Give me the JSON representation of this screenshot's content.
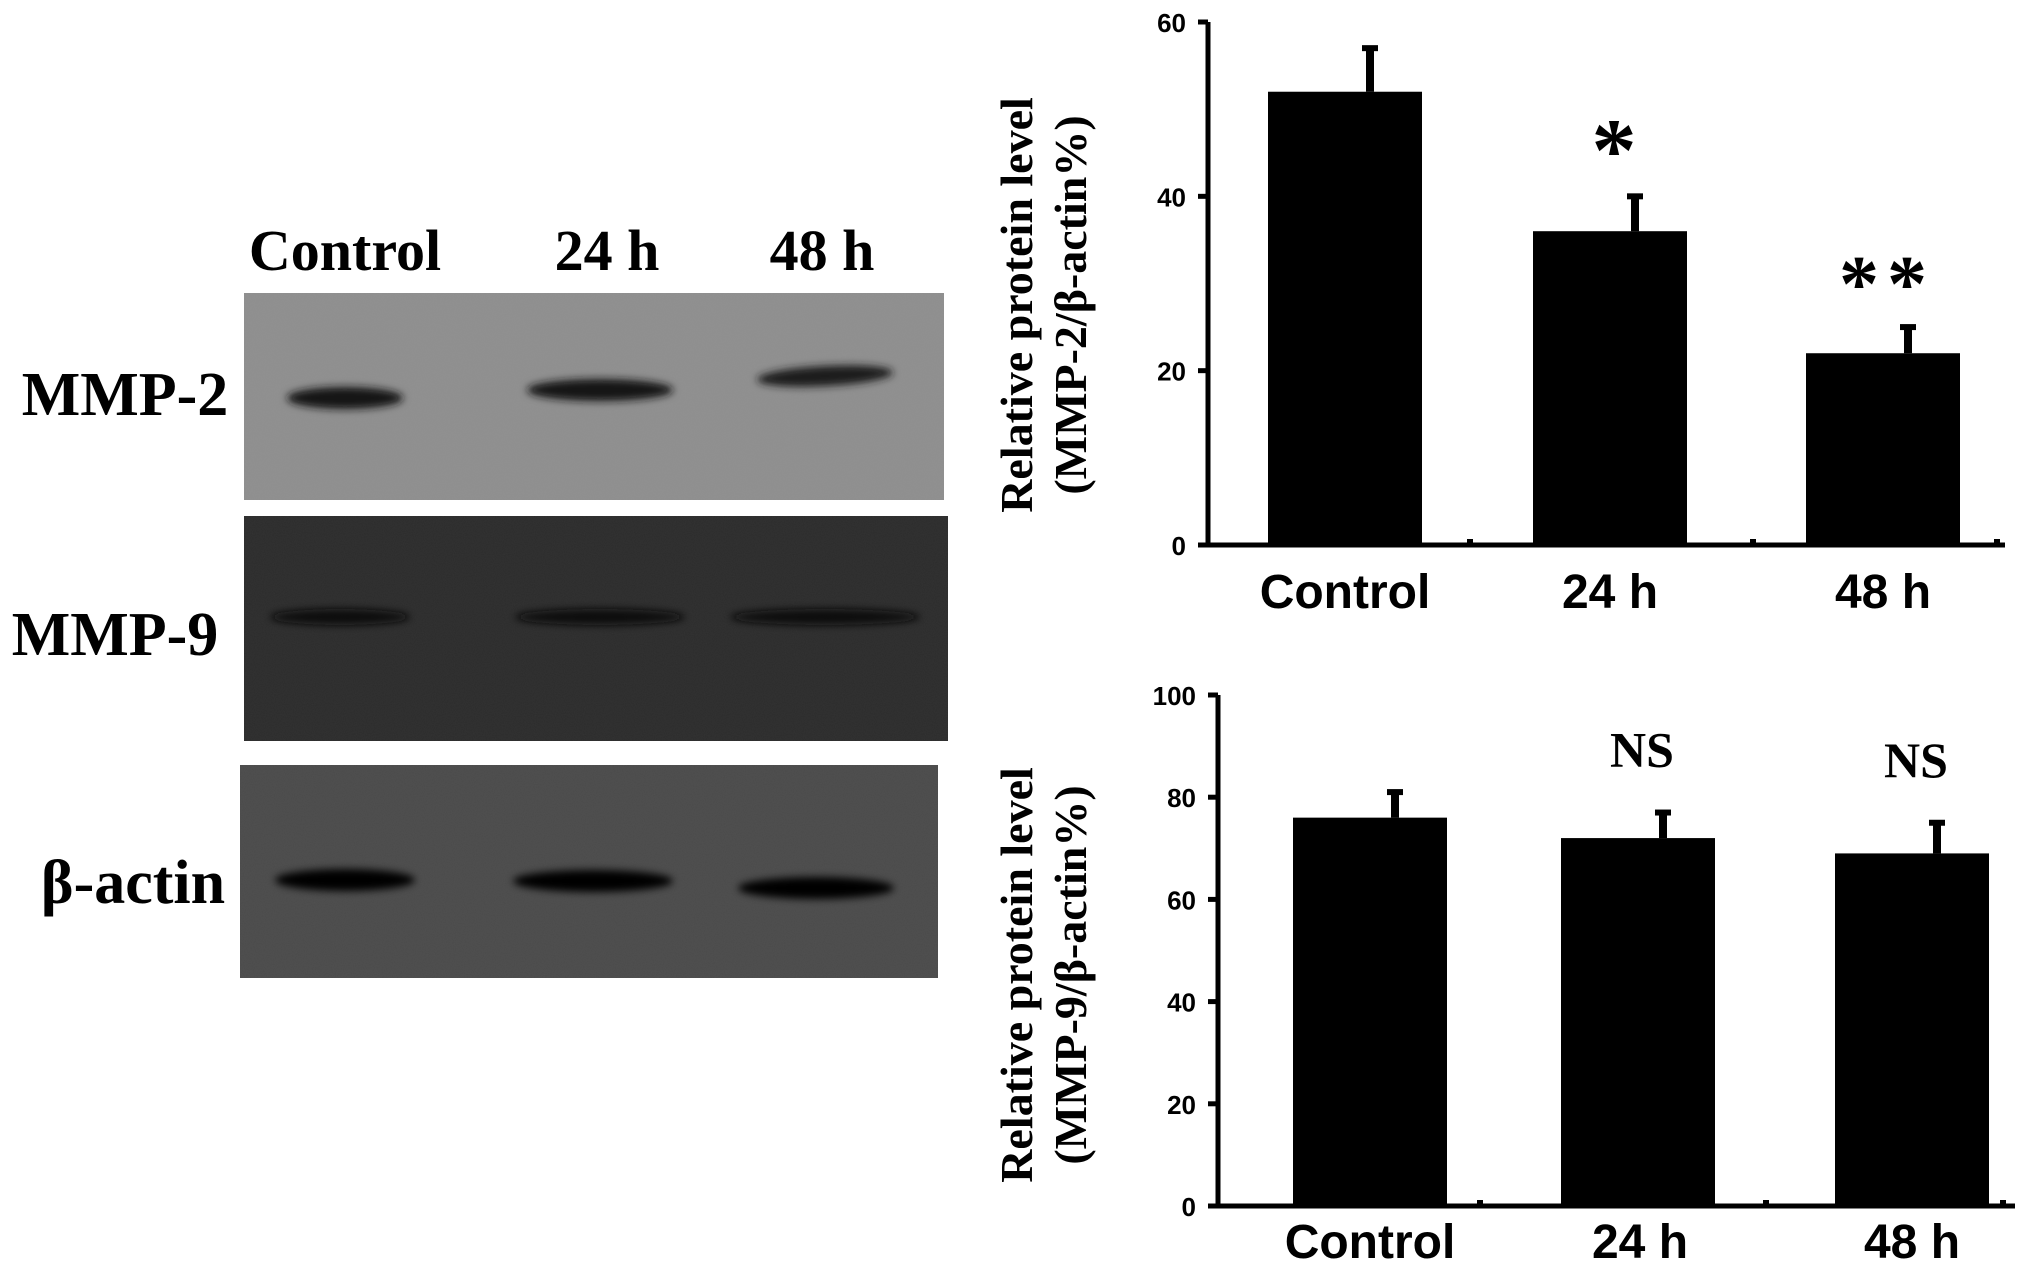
{
  "blot": {
    "lanes": [
      "Control",
      "24 h",
      "48 h"
    ],
    "rows": [
      {
        "label": "MMP-2",
        "band_intensity": [
          0.8,
          0.8,
          0.75
        ]
      },
      {
        "label": "MMP-9",
        "band_intensity": [
          0.7,
          0.7,
          0.7
        ]
      },
      {
        "label": "β-actin",
        "band_intensity": [
          1.0,
          1.0,
          1.0
        ]
      }
    ]
  },
  "colors": {
    "bar": "#000000",
    "axis": "#000000",
    "background": "#ffffff"
  },
  "chart_data": [
    {
      "type": "bar",
      "categories": [
        "Control",
        "24 h",
        "48 h"
      ],
      "values": [
        52,
        36,
        22
      ],
      "errors": [
        5,
        4,
        3
      ],
      "significance": [
        "",
        "*",
        "**"
      ],
      "ylabel_line1": "Relative protein level",
      "ylabel_line2": "(MMP-2/β-actin%)",
      "ylim": [
        0,
        60
      ],
      "yticks": [
        0,
        20,
        40,
        60
      ],
      "grid": false
    },
    {
      "type": "bar",
      "categories": [
        "Control",
        "24 h",
        "48 h"
      ],
      "values": [
        76,
        72,
        69
      ],
      "errors": [
        5,
        5,
        6
      ],
      "significance": [
        "",
        "NS",
        "NS"
      ],
      "ylabel_line1": "Relative protein level",
      "ylabel_line2": "(MMP-9/β-actin%)",
      "ylim": [
        0,
        100
      ],
      "yticks": [
        0,
        20,
        40,
        60,
        80,
        100
      ],
      "grid": false
    }
  ]
}
